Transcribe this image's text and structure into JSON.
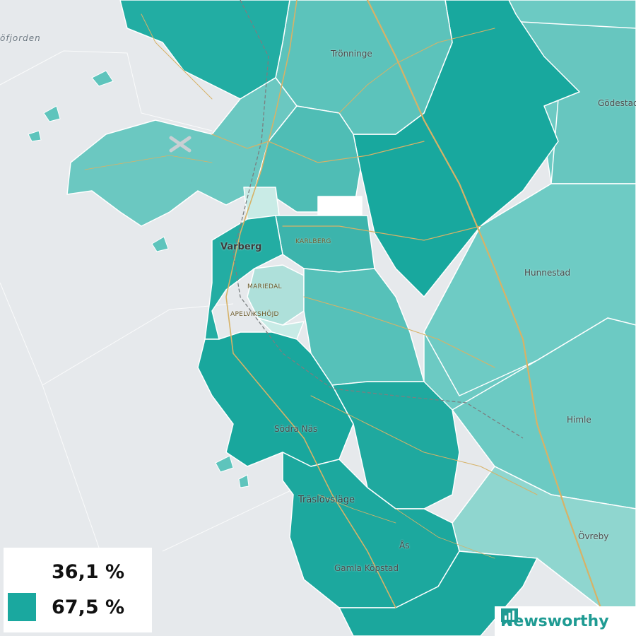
{
  "colors": {
    "water": "#e6e9ec",
    "scale_low": "#ffffff",
    "scale_high": "#1aa89f",
    "road": "#d7b267",
    "border": "#ffffff",
    "brand": "#1f9b93"
  },
  "places": {
    "fjord": "öfjorden",
    "tronninge": "Trönninge",
    "godestad": "Gödestad",
    "varberg": "Varberg",
    "karlberg": "KARLBERG",
    "mariedal": "MARIEDAL",
    "apelvikshojd": "APELVIKSHÖJD",
    "hunnestad": "Hunnestad",
    "himle": "Himle",
    "sodra_nas": "Södra Näs",
    "traslovslage": "Träslövsläge",
    "as": "Ås",
    "gamla_kopstad": "Gamla Köpstad",
    "ovreby": "Övreby"
  },
  "legend": {
    "min_label": "36,1 %",
    "max_label": "67,5 %",
    "min_value": 36.1,
    "max_value": 67.5
  },
  "brand": {
    "name": "Newsworthy",
    "icon": "bar-chart-speech-icon"
  }
}
